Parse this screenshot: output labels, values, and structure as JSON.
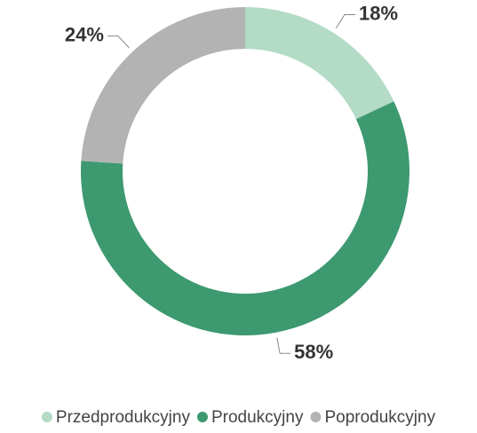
{
  "chart_data": {
    "type": "donut",
    "categories": [
      "Przedprodukcyjny",
      "Produkcyjny",
      "Poprodukcyjny"
    ],
    "values": [
      18,
      58,
      24
    ],
    "value_labels": [
      "18%",
      "58%",
      "24%"
    ],
    "colors": [
      "#b3dbc6",
      "#3d9970",
      "#b3b3b3"
    ]
  }
}
